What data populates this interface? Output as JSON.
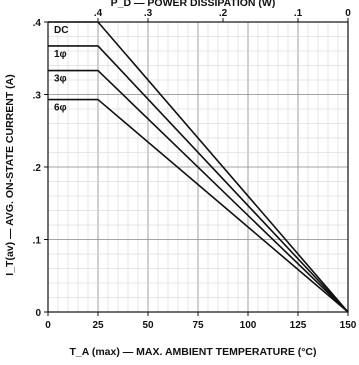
{
  "chart_data": {
    "type": "line",
    "title": "",
    "xlabel": "T_A (max) — MAX. AMBIENT TEMPERATURE (°C)",
    "ylabel": "I_T(av) — AVG. ON-STATE CURRENT (A)",
    "top_axis_label": "P_D — POWER DISSIPATION (W)",
    "xlim": [
      0,
      150
    ],
    "ylim": [
      0,
      0.4
    ],
    "x_ticks": [
      {
        "value": 0,
        "label": "0"
      },
      {
        "value": 25,
        "label": "25"
      },
      {
        "value": 50,
        "label": "50"
      },
      {
        "value": 75,
        "label": "75"
      },
      {
        "value": 100,
        "label": "100"
      },
      {
        "value": 125,
        "label": "125"
      },
      {
        "value": 150,
        "label": "150"
      }
    ],
    "y_ticks": [
      {
        "value": 0,
        "label": "0"
      },
      {
        "value": 0.1,
        "label": ".1"
      },
      {
        "value": 0.2,
        "label": ".2"
      },
      {
        "value": 0.3,
        "label": ".3"
      },
      {
        "value": 0.4,
        "label": ".4"
      }
    ],
    "top_ticks": [
      {
        "x": 25,
        "label": ".4"
      },
      {
        "x": 50,
        "label": ".3"
      },
      {
        "x": 87.5,
        "label": ".2"
      },
      {
        "x": 125,
        "label": ".1"
      },
      {
        "x": 150,
        "label": "0"
      }
    ],
    "grid": true,
    "series": [
      {
        "name": "DC",
        "x": [
          0,
          25,
          150
        ],
        "y": [
          0.4,
          0.4,
          0
        ]
      },
      {
        "name": "1φ",
        "x": [
          0,
          25,
          150
        ],
        "y": [
          0.367,
          0.367,
          0
        ]
      },
      {
        "name": "3φ",
        "x": [
          0,
          25,
          150
        ],
        "y": [
          0.333,
          0.333,
          0
        ]
      },
      {
        "name": "6φ",
        "x": [
          0,
          25,
          150
        ],
        "y": [
          0.293,
          0.293,
          0
        ]
      }
    ]
  }
}
